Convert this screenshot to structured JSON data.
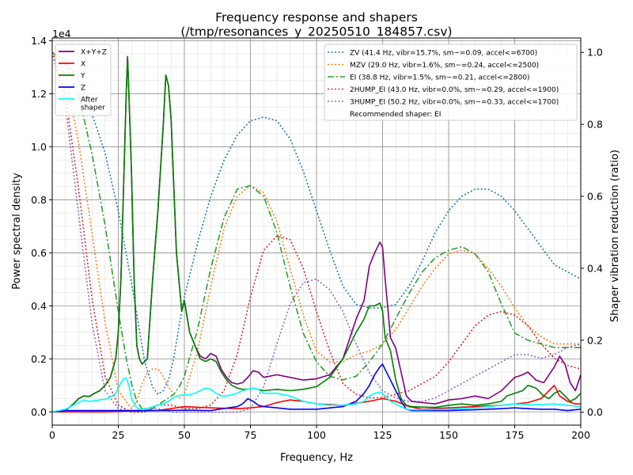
{
  "chart_data": {
    "type": "line",
    "title": "Frequency response and shapers",
    "subtitle": "(/tmp/resonances_y_20250510_184857.csv)",
    "xlabel": "Frequency, Hz",
    "ylabel": "Power spectral density",
    "y2label": "Shaper vibration reduction (ratio)",
    "y_offset_text": "1e4",
    "xlim": [
      0,
      200
    ],
    "ylim": [
      -500,
      14100
    ],
    "y2lim": [
      -0.0358,
      1.04
    ],
    "grid": "major and minor",
    "xticks": [
      0,
      25,
      50,
      75,
      100,
      125,
      150,
      175,
      200
    ],
    "xtick_labels": [
      "0",
      "25",
      "50",
      "75",
      "100",
      "125",
      "150",
      "175",
      "200"
    ],
    "yticks": [
      0,
      2000,
      4000,
      6000,
      8000,
      10000,
      12000,
      14000
    ],
    "ytick_labels": [
      "0.0",
      "0.2",
      "0.4",
      "0.6",
      "0.8",
      "1.0",
      "1.2",
      "1.4"
    ],
    "y2ticks": [
      0,
      0.2,
      0.4,
      0.6,
      0.8,
      1.0
    ],
    "y2tick_labels": [
      "0.0",
      "0.2",
      "0.4",
      "0.6",
      "0.8",
      "1.0"
    ],
    "legend_left_position": "upper-left",
    "legend_right_position": "upper-right",
    "legend_right_note": "Recommended shaper: EI",
    "series": [
      {
        "name": "X+Y+Z",
        "axis": "left",
        "color": "#800080",
        "dash": "solid",
        "x": [
          0,
          5,
          8,
          10,
          12,
          14,
          16,
          18,
          20,
          22,
          24,
          25,
          26,
          27,
          28,
          28.5,
          29,
          30,
          31,
          32,
          33,
          34,
          36,
          38,
          40,
          42,
          43,
          44,
          45,
          47,
          49,
          50,
          52,
          54,
          56,
          58,
          60,
          62,
          64,
          66,
          68,
          70,
          72,
          74,
          76,
          78,
          80,
          85,
          90,
          95,
          100,
          105,
          110,
          115,
          118,
          120,
          122,
          124,
          125,
          126,
          128,
          130,
          132,
          134,
          136,
          140,
          145,
          150,
          155,
          160,
          165,
          170,
          172,
          175,
          178,
          180,
          183,
          186,
          188,
          190,
          192,
          194,
          196,
          198,
          200
        ],
        "y": [
          0,
          50,
          300,
          500,
          600,
          580,
          700,
          800,
          1000,
          1300,
          2000,
          3000,
          5000,
          8500,
          12000,
          13400,
          12000,
          9000,
          5000,
          2500,
          2000,
          1800,
          2000,
          5000,
          7600,
          10800,
          12700,
          12300,
          11000,
          6000,
          3800,
          4200,
          3000,
          2500,
          2100,
          2000,
          2200,
          2100,
          1600,
          1300,
          1100,
          1050,
          1100,
          1300,
          1550,
          1500,
          1300,
          1400,
          1300,
          1200,
          1250,
          1400,
          2000,
          3500,
          4200,
          5500,
          6000,
          6400,
          6200,
          5000,
          2800,
          2400,
          1500,
          600,
          400,
          350,
          300,
          450,
          500,
          600,
          500,
          800,
          1000,
          1300,
          1400,
          1500,
          1200,
          1100,
          1400,
          1700,
          2100,
          1800,
          1100,
          800,
          1400
        ]
      },
      {
        "name": "X",
        "axis": "left",
        "color": "#ff0000",
        "dash": "solid",
        "x": [
          0,
          20,
          40,
          50,
          60,
          70,
          75,
          80,
          85,
          90,
          95,
          100,
          110,
          120,
          125,
          130,
          135,
          140,
          150,
          160,
          170,
          175,
          180,
          185,
          188,
          190,
          192,
          195,
          198,
          200
        ],
        "y": [
          0,
          0,
          50,
          200,
          150,
          120,
          150,
          200,
          350,
          450,
          400,
          300,
          250,
          400,
          500,
          400,
          200,
          100,
          150,
          200,
          250,
          300,
          350,
          500,
          800,
          1000,
          600,
          400,
          300,
          300
        ]
      },
      {
        "name": "Y",
        "axis": "left",
        "color": "#008000",
        "dash": "solid",
        "x": [
          0,
          5,
          8,
          10,
          12,
          14,
          16,
          18,
          20,
          22,
          24,
          25,
          26,
          27,
          28,
          28.5,
          29,
          30,
          31,
          32,
          33,
          34,
          36,
          38,
          40,
          42,
          43,
          44,
          45,
          47,
          49,
          50,
          52,
          54,
          56,
          58,
          60,
          62,
          64,
          66,
          68,
          70,
          72,
          74,
          76,
          78,
          80,
          85,
          90,
          95,
          100,
          105,
          110,
          115,
          118,
          120,
          122,
          124,
          125,
          126,
          128,
          130,
          132,
          134,
          136,
          140,
          145,
          150,
          155,
          160,
          165,
          170,
          172,
          175,
          178,
          180,
          183,
          186,
          188,
          190,
          192,
          194,
          196,
          198,
          200
        ],
        "y": [
          0,
          50,
          300,
          500,
          600,
          580,
          700,
          800,
          1000,
          1300,
          2000,
          3000,
          5000,
          8500,
          12000,
          13400,
          12000,
          9000,
          5000,
          2500,
          2000,
          1800,
          2000,
          5000,
          7600,
          10800,
          12700,
          12300,
          11000,
          6000,
          3800,
          4200,
          3000,
          2500,
          2000,
          1900,
          2000,
          1900,
          1500,
          1200,
          1000,
          900,
          850,
          850,
          900,
          850,
          800,
          850,
          800,
          850,
          950,
          1300,
          2000,
          3000,
          3500,
          4000,
          4000,
          4100,
          3800,
          2800,
          2300,
          1200,
          500,
          250,
          200,
          180,
          170,
          250,
          300,
          250,
          300,
          400,
          600,
          700,
          800,
          1000,
          900,
          600,
          500,
          700,
          800,
          600,
          400,
          500,
          700
        ]
      },
      {
        "name": "Z",
        "axis": "left",
        "color": "#0000ff",
        "dash": "solid",
        "x": [
          0,
          5,
          10,
          20,
          30,
          40,
          50,
          60,
          70,
          72,
          74,
          76,
          78,
          80,
          85,
          90,
          100,
          110,
          115,
          118,
          120,
          122,
          124,
          125,
          126,
          128,
          130,
          132,
          134,
          136,
          140,
          150,
          160,
          170,
          175,
          180,
          185,
          190,
          195,
          200
        ],
        "y": [
          0,
          50,
          50,
          50,
          50,
          50,
          60,
          50,
          200,
          300,
          500,
          400,
          250,
          200,
          150,
          100,
          100,
          200,
          400,
          700,
          1000,
          1400,
          1700,
          1800,
          1600,
          1200,
          800,
          400,
          100,
          50,
          50,
          50,
          80,
          120,
          150,
          120,
          100,
          100,
          50,
          100
        ]
      },
      {
        "name": "After\nshaper",
        "axis": "left",
        "color": "#00ffff",
        "dash": "solid",
        "x": [
          0,
          5,
          8,
          10,
          12,
          14,
          16,
          18,
          20,
          22,
          24,
          26,
          27,
          28,
          29,
          30,
          32,
          34,
          36,
          38,
          40,
          42,
          44,
          46,
          48,
          50,
          52,
          54,
          56,
          58,
          60,
          62,
          64,
          66,
          68,
          70,
          72,
          74,
          76,
          78,
          80,
          85,
          90,
          95,
          100,
          105,
          110,
          115,
          118,
          120,
          122,
          124,
          125,
          126,
          128,
          130,
          132,
          134,
          136,
          140,
          145,
          150,
          155,
          160,
          165,
          170,
          175,
          180,
          185,
          190,
          195,
          200
        ],
        "y": [
          0,
          100,
          250,
          350,
          450,
          400,
          420,
          450,
          480,
          550,
          700,
          1100,
          1250,
          1280,
          1000,
          500,
          150,
          80,
          120,
          200,
          250,
          300,
          400,
          550,
          620,
          650,
          650,
          700,
          800,
          900,
          850,
          700,
          600,
          600,
          650,
          700,
          800,
          850,
          900,
          850,
          700,
          700,
          600,
          400,
          300,
          250,
          250,
          300,
          400,
          600,
          700,
          750,
          700,
          600,
          400,
          300,
          200,
          100,
          80,
          80,
          90,
          100,
          120,
          150,
          200,
          250,
          300,
          280,
          280,
          300,
          250,
          200
        ]
      },
      {
        "name": "ZV (41.4 Hz, vibr=15.7%, sm~=0.09, accel<=6700)",
        "axis": "right",
        "color": "#1f77b4",
        "dash": "2,2.5",
        "x": [
          0,
          5,
          10,
          15,
          20,
          25,
          30,
          35,
          38,
          40,
          42,
          44,
          46,
          48,
          50,
          55,
          60,
          65,
          70,
          75,
          80,
          85,
          90,
          95,
          100,
          105,
          110,
          115,
          120,
          125,
          130,
          135,
          140,
          145,
          150,
          155,
          160,
          165,
          170,
          175,
          180,
          185,
          190,
          195,
          200
        ],
        "y": [
          1.0,
          0.98,
          0.92,
          0.83,
          0.72,
          0.56,
          0.36,
          0.14,
          0.07,
          0.05,
          0.06,
          0.09,
          0.15,
          0.24,
          0.32,
          0.47,
          0.6,
          0.7,
          0.77,
          0.81,
          0.82,
          0.81,
          0.76,
          0.67,
          0.56,
          0.45,
          0.35,
          0.3,
          0.29,
          0.29,
          0.3,
          0.35,
          0.42,
          0.5,
          0.56,
          0.6,
          0.62,
          0.62,
          0.6,
          0.56,
          0.51,
          0.46,
          0.41,
          0.39,
          0.37
        ]
      },
      {
        "name": "MZV (29.0 Hz, vibr=1.6%, sm~=0.24, accel<=2500)",
        "axis": "right",
        "color": "#ff7f0e",
        "dash": "2,2.5",
        "x": [
          0,
          5,
          10,
          15,
          20,
          25,
          30,
          32,
          34,
          36,
          38,
          40,
          42,
          44,
          46,
          48,
          50,
          55,
          60,
          65,
          70,
          75,
          80,
          85,
          90,
          95,
          100,
          105,
          110,
          115,
          120,
          125,
          130,
          135,
          140,
          145,
          150,
          155,
          160,
          165,
          170,
          175,
          180,
          185,
          190,
          195,
          200
        ],
        "y": [
          1.0,
          0.93,
          0.75,
          0.5,
          0.25,
          0.06,
          0.01,
          0.03,
          0.08,
          0.11,
          0.12,
          0.12,
          0.1,
          0.07,
          0.05,
          0.04,
          0.05,
          0.17,
          0.35,
          0.51,
          0.6,
          0.63,
          0.61,
          0.53,
          0.4,
          0.27,
          0.17,
          0.14,
          0.14,
          0.16,
          0.17,
          0.19,
          0.23,
          0.29,
          0.35,
          0.4,
          0.44,
          0.45,
          0.44,
          0.4,
          0.35,
          0.29,
          0.24,
          0.21,
          0.19,
          0.19,
          0.19
        ]
      },
      {
        "name": "EI (38.8 Hz, vibr=1.5%, sm~=0.21, accel<=2800)",
        "axis": "right",
        "color": "#2ca02c",
        "dash": "8,3,2,3",
        "x": [
          0,
          5,
          10,
          15,
          20,
          25,
          28,
          30,
          32,
          34,
          36,
          38,
          40,
          42,
          44,
          46,
          48,
          50,
          55,
          60,
          65,
          70,
          75,
          80,
          85,
          90,
          95,
          100,
          105,
          110,
          115,
          120,
          125,
          130,
          135,
          140,
          145,
          150,
          155,
          160,
          165,
          170,
          175,
          180,
          185,
          190,
          195,
          200
        ],
        "y": [
          1.0,
          0.97,
          0.88,
          0.72,
          0.52,
          0.28,
          0.15,
          0.08,
          0.03,
          0.01,
          0.005,
          0.01,
          0.02,
          0.03,
          0.04,
          0.05,
          0.07,
          0.1,
          0.23,
          0.4,
          0.54,
          0.62,
          0.63,
          0.6,
          0.5,
          0.35,
          0.22,
          0.14,
          0.1,
          0.09,
          0.1,
          0.14,
          0.19,
          0.26,
          0.33,
          0.39,
          0.43,
          0.45,
          0.46,
          0.44,
          0.39,
          0.3,
          0.22,
          0.2,
          0.19,
          0.18,
          0.18,
          0.18
        ]
      },
      {
        "name": "2HUMP_EI (43.0 Hz, vibr=0.0%, sm~=0.29, accel<=1900)",
        "axis": "right",
        "color": "#d62728",
        "dash": "2,2.5",
        "x": [
          0,
          5,
          10,
          15,
          20,
          25,
          30,
          35,
          40,
          45,
          50,
          55,
          60,
          65,
          70,
          75,
          80,
          85,
          90,
          95,
          100,
          105,
          110,
          115,
          120,
          125,
          130,
          135,
          140,
          145,
          150,
          155,
          160,
          165,
          170,
          175,
          180,
          185,
          190,
          195,
          200
        ],
        "y": [
          1.0,
          0.88,
          0.62,
          0.32,
          0.1,
          0.02,
          0.0,
          0.0,
          0.02,
          0.02,
          0.01,
          0.01,
          0.02,
          0.06,
          0.16,
          0.32,
          0.45,
          0.49,
          0.48,
          0.4,
          0.28,
          0.17,
          0.08,
          0.05,
          0.04,
          0.04,
          0.05,
          0.06,
          0.08,
          0.1,
          0.14,
          0.19,
          0.24,
          0.27,
          0.28,
          0.27,
          0.24,
          0.19,
          0.15,
          0.13,
          0.12
        ]
      },
      {
        "name": "3HUMP_EI (50.2 Hz, vibr=0.0%, sm~=0.33, accel<=1700)",
        "axis": "right",
        "color": "#9467bd",
        "dash": "2,2.5",
        "x": [
          0,
          5,
          10,
          15,
          20,
          25,
          30,
          35,
          40,
          45,
          50,
          55,
          60,
          65,
          70,
          75,
          80,
          85,
          90,
          95,
          100,
          105,
          110,
          115,
          120,
          125,
          130,
          135,
          140,
          145,
          150,
          155,
          160,
          165,
          170,
          175,
          180,
          185,
          190,
          195,
          200
        ],
        "y": [
          1.0,
          0.85,
          0.55,
          0.25,
          0.06,
          0.01,
          0.0,
          0.01,
          0.01,
          0.0,
          0.0,
          0.0,
          0.0,
          0.0,
          0.0,
          0.01,
          0.07,
          0.19,
          0.3,
          0.36,
          0.37,
          0.34,
          0.28,
          0.19,
          0.11,
          0.06,
          0.04,
          0.03,
          0.03,
          0.04,
          0.06,
          0.08,
          0.1,
          0.12,
          0.14,
          0.16,
          0.16,
          0.15,
          0.16,
          0.18,
          0.19
        ]
      }
    ]
  }
}
